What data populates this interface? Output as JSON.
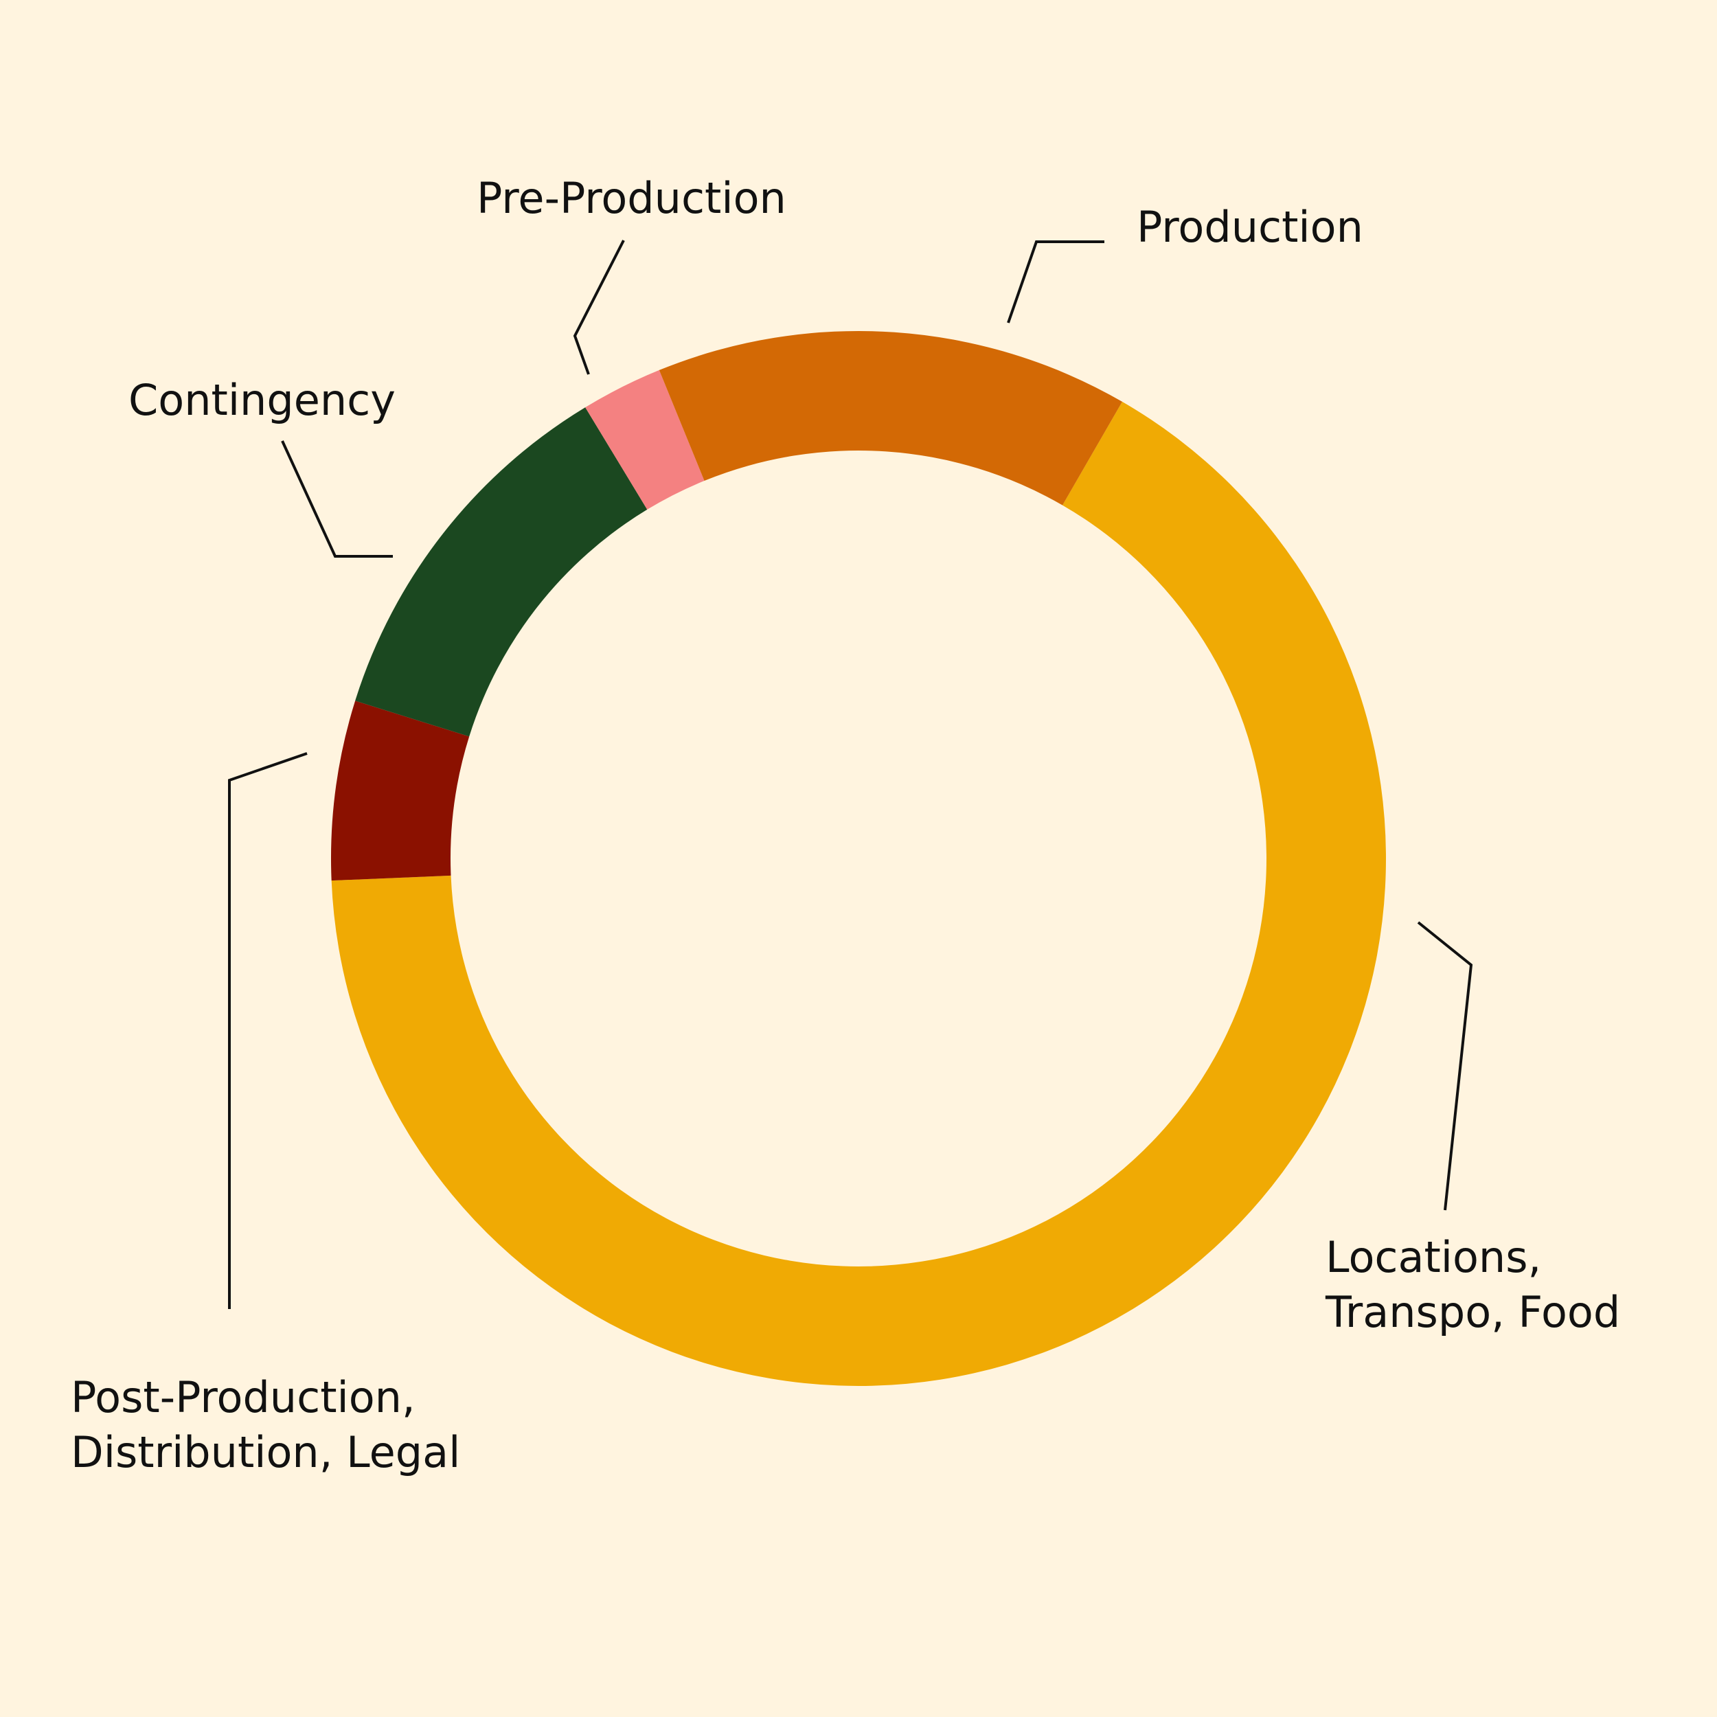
{
  "page": {
    "background": "#FFF4DF",
    "text_color": "#111111"
  },
  "chart_data": {
    "type": "pie",
    "donut": true,
    "title": "",
    "start_angle_deg": -60,
    "direction": "clockwise",
    "slices": [
      {
        "label": "Locations, Transpo, Food",
        "label_lines": [
          "Locations,",
          "Transpo, Food"
        ],
        "value": 66.0,
        "color": "#F0AA04"
      },
      {
        "label": "Post-Production, Distribution, Legal",
        "label_lines": [
          "Post-Production,",
          "Distribution, Legal"
        ],
        "value": 5.5,
        "color": "#8B1100"
      },
      {
        "label": "Contingency",
        "label_lines": [
          "Contingency"
        ],
        "value": 11.5,
        "color": "#1B4820"
      },
      {
        "label": "Pre-Production",
        "label_lines": [
          "Pre-Production"
        ],
        "value": 2.5,
        "color": "#F48181"
      },
      {
        "label": "Production",
        "label_lines": [
          "Production"
        ],
        "value": 14.5,
        "color": "#D36905"
      }
    ]
  }
}
